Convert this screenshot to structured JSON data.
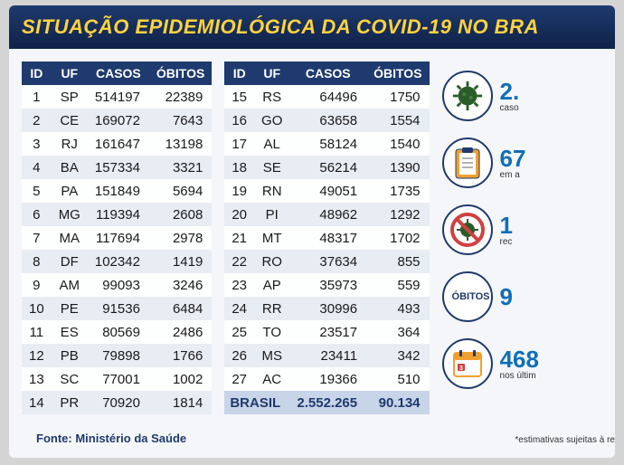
{
  "title": "SITUAÇÃO EPIDEMIOLÓGICA DA COVID-19 NO BRA",
  "columns": [
    "ID",
    "UF",
    "CASOS",
    "ÓBITOS"
  ],
  "table1": [
    {
      "id": "1",
      "uf": "SP",
      "casos": "514197",
      "obitos": "22389"
    },
    {
      "id": "2",
      "uf": "CE",
      "casos": "169072",
      "obitos": "7643"
    },
    {
      "id": "3",
      "uf": "RJ",
      "casos": "161647",
      "obitos": "13198"
    },
    {
      "id": "4",
      "uf": "BA",
      "casos": "157334",
      "obitos": "3321"
    },
    {
      "id": "5",
      "uf": "PA",
      "casos": "151849",
      "obitos": "5694"
    },
    {
      "id": "6",
      "uf": "MG",
      "casos": "119394",
      "obitos": "2608"
    },
    {
      "id": "7",
      "uf": "MA",
      "casos": "117694",
      "obitos": "2978"
    },
    {
      "id": "8",
      "uf": "DF",
      "casos": "102342",
      "obitos": "1419"
    },
    {
      "id": "9",
      "uf": "AM",
      "casos": "99093",
      "obitos": "3246"
    },
    {
      "id": "10",
      "uf": "PE",
      "casos": "91536",
      "obitos": "6484"
    },
    {
      "id": "11",
      "uf": "ES",
      "casos": "80569",
      "obitos": "2486"
    },
    {
      "id": "12",
      "uf": "PB",
      "casos": "79898",
      "obitos": "1766"
    },
    {
      "id": "13",
      "uf": "SC",
      "casos": "77001",
      "obitos": "1002"
    },
    {
      "id": "14",
      "uf": "PR",
      "casos": "70920",
      "obitos": "1814"
    }
  ],
  "table2": [
    {
      "id": "15",
      "uf": "RS",
      "casos": "64496",
      "obitos": "1750"
    },
    {
      "id": "16",
      "uf": "GO",
      "casos": "63658",
      "obitos": "1554"
    },
    {
      "id": "17",
      "uf": "AL",
      "casos": "58124",
      "obitos": "1540"
    },
    {
      "id": "18",
      "uf": "SE",
      "casos": "56214",
      "obitos": "1390"
    },
    {
      "id": "19",
      "uf": "RN",
      "casos": "49051",
      "obitos": "1735"
    },
    {
      "id": "20",
      "uf": "PI",
      "casos": "48962",
      "obitos": "1292"
    },
    {
      "id": "21",
      "uf": "MT",
      "casos": "48317",
      "obitos": "1702"
    },
    {
      "id": "22",
      "uf": "RO",
      "casos": "37634",
      "obitos": "855"
    },
    {
      "id": "23",
      "uf": "AP",
      "casos": "35973",
      "obitos": "559"
    },
    {
      "id": "24",
      "uf": "RR",
      "casos": "30996",
      "obitos": "493"
    },
    {
      "id": "25",
      "uf": "TO",
      "casos": "23517",
      "obitos": "364"
    },
    {
      "id": "26",
      "uf": "MS",
      "casos": "23411",
      "obitos": "342"
    },
    {
      "id": "27",
      "uf": "AC",
      "casos": "19366",
      "obitos": "510"
    }
  ],
  "total": {
    "label": "BRASIL",
    "casos": "2.552.265",
    "obitos": "90.134"
  },
  "stats": [
    {
      "icon": "virus",
      "value": "2.",
      "label": "caso"
    },
    {
      "icon": "clipboard",
      "value": "67",
      "label": "em a"
    },
    {
      "icon": "novirus",
      "value": "1",
      "label": "rec"
    },
    {
      "icon": "obitos",
      "value": "9",
      "label": ""
    },
    {
      "icon": "calendar",
      "value": "468",
      "label": "nos últim"
    }
  ],
  "obitos_text": "ÓBITOS",
  "source": "Fonte: Ministério da Saúde",
  "footnote": "*estimativas sujeitas à re",
  "colors": {
    "header_bg": "#1e3a6e",
    "header_text": "#ffd23f",
    "stat_value": "#0e6fb8",
    "row_even": "#e8ecf3",
    "row_odd": "#fdfefe",
    "total_bg": "#c8d4e8"
  }
}
